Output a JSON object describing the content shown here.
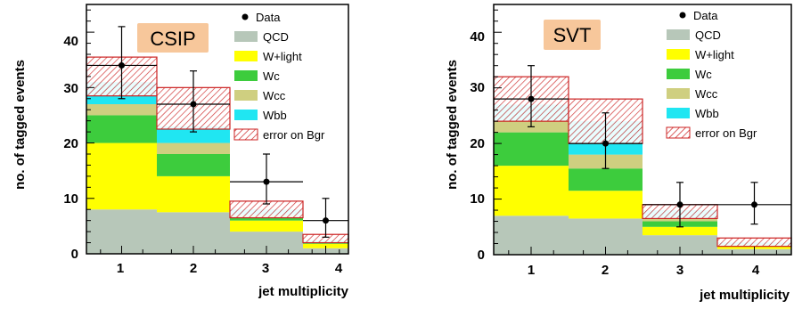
{
  "colors": {
    "QCD": "#b7c7b9",
    "W+light": "#ffff00",
    "Wc": "#3dcc3d",
    "Wcc": "#cfcf80",
    "Wbb": "#20e6f2",
    "error": "#cc2222",
    "tag_box": "#f7c79b"
  },
  "chart_data": [
    {
      "type": "bar",
      "stacked": true,
      "tag": "CSIP",
      "title": "",
      "xlabel": "jet multiplicity",
      "ylabel": "no. of tagged events",
      "categories": [
        "1",
        "2",
        "3",
        "4"
      ],
      "ylim": [
        0,
        45
      ],
      "yticks": [
        "0",
        "10",
        "20",
        "30",
        "40"
      ],
      "legend_position": "top-right",
      "legend": [
        "Data",
        "QCD",
        "W+light",
        "Wc",
        "Wcc",
        "Wbb",
        "error on Bgr"
      ],
      "series": [
        {
          "name": "QCD",
          "values": [
            8,
            7.5,
            4,
            1
          ]
        },
        {
          "name": "W+light",
          "values": [
            12,
            6.5,
            2,
            0.8
          ]
        },
        {
          "name": "Wc",
          "values": [
            5,
            4,
            0.7,
            0.2
          ]
        },
        {
          "name": "Wcc",
          "values": [
            2,
            2,
            0.3,
            0.1
          ]
        },
        {
          "name": "Wbb",
          "values": [
            4,
            3,
            1,
            0.3
          ]
        }
      ],
      "bgr_error": [
        [
          28.5,
          35.5
        ],
        [
          22.5,
          30
        ],
        [
          6.5,
          9.5
        ],
        [
          2,
          3.5
        ]
      ],
      "data": {
        "values": [
          34,
          27,
          13,
          6
        ],
        "errors": [
          [
            28,
            41
          ],
          [
            22,
            33
          ],
          [
            9,
            18
          ],
          [
            3,
            10
          ]
        ]
      }
    },
    {
      "type": "bar",
      "stacked": true,
      "tag": "SVT",
      "title": "",
      "xlabel": "jet multiplicity",
      "ylabel": "no. of tagged events",
      "categories": [
        "1",
        "2",
        "3",
        "4"
      ],
      "ylim": [
        0,
        45
      ],
      "yticks": [
        "0",
        "10",
        "20",
        "30",
        "40"
      ],
      "legend_position": "top-right",
      "legend": [
        "Data",
        "QCD",
        "W+light",
        "Wc",
        "Wcc",
        "Wbb",
        "error on Bgr"
      ],
      "series": [
        {
          "name": "QCD",
          "values": [
            7,
            6.5,
            3.5,
            1
          ]
        },
        {
          "name": "W+light",
          "values": [
            9,
            5,
            1.5,
            0.5
          ]
        },
        {
          "name": "Wc",
          "values": [
            6,
            4,
            1,
            0.2
          ]
        },
        {
          "name": "Wcc",
          "values": [
            2,
            2.5,
            0.5,
            0.1
          ]
        },
        {
          "name": "Wbb",
          "values": [
            3,
            6,
            1.5,
            0.4
          ]
        }
      ],
      "bgr_error": [
        [
          24,
          32
        ],
        [
          20,
          28
        ],
        [
          6.5,
          9
        ],
        [
          1.5,
          3
        ]
      ],
      "data": {
        "values": [
          28,
          20,
          9,
          9
        ],
        "errors": [
          [
            23,
            34
          ],
          [
            15.5,
            25.5
          ],
          [
            5,
            13
          ],
          [
            5.5,
            13
          ]
        ]
      }
    }
  ]
}
